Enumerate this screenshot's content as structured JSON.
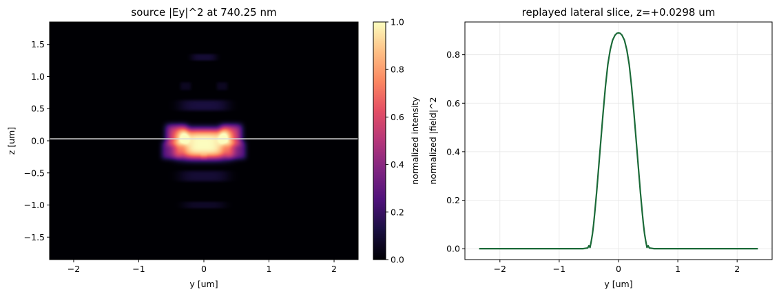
{
  "chart_data": [
    {
      "type": "heatmap",
      "title": "source |Ey|^2 at 740.25 nm",
      "xlabel": "y [um]",
      "ylabel": "z [um]",
      "xlim": [
        -2.37,
        2.37
      ],
      "ylim": [
        -1.85,
        1.85
      ],
      "xticks": [
        -2,
        -1,
        0,
        1,
        2
      ],
      "xtick_labels": [
        "−2",
        "−1",
        "0",
        "1",
        "2"
      ],
      "yticks": [
        -1.5,
        -1.0,
        -0.5,
        0.0,
        0.5,
        1.0,
        1.5
      ],
      "ytick_labels": [
        "−1.5",
        "−1.0",
        "−0.5",
        "0.0",
        "0.5",
        "1.0",
        "1.5"
      ],
      "colormap": "magma",
      "slice_line_z": 0.0298,
      "slice_line_color": "#d9d9d9",
      "intensity_blobs": [
        {
          "y": 0.0,
          "z": -0.05,
          "sy": 0.38,
          "sz": 0.22,
          "amp": 1.0
        },
        {
          "y": -0.42,
          "z": 0.1,
          "sy": 0.16,
          "sz": 0.15,
          "amp": 0.45
        },
        {
          "y": 0.42,
          "z": 0.1,
          "sy": 0.16,
          "sz": 0.15,
          "amp": 0.45
        },
        {
          "y": -0.5,
          "z": -0.15,
          "sy": 0.14,
          "sz": 0.13,
          "amp": 0.3
        },
        {
          "y": 0.5,
          "z": -0.15,
          "sy": 0.14,
          "sz": 0.13,
          "amp": 0.3
        },
        {
          "y": 0.0,
          "z": 0.55,
          "sy": 0.35,
          "sz": 0.08,
          "amp": 0.12
        },
        {
          "y": 0.0,
          "z": -0.55,
          "sy": 0.35,
          "sz": 0.08,
          "amp": 0.1
        },
        {
          "y": 0.0,
          "z": 1.3,
          "sy": 0.18,
          "sz": 0.05,
          "amp": 0.1
        },
        {
          "y": -0.28,
          "z": 0.85,
          "sy": 0.08,
          "sz": 0.06,
          "amp": 0.06
        },
        {
          "y": 0.28,
          "z": 0.85,
          "sy": 0.08,
          "sz": 0.06,
          "amp": 0.06
        },
        {
          "y": 0.0,
          "z": -1.0,
          "sy": 0.3,
          "sz": 0.05,
          "amp": 0.07
        },
        {
          "y": 0.0,
          "z": -0.25,
          "sy": 0.05,
          "sz": 0.05,
          "amp": 0.05
        }
      ]
    },
    {
      "type": "colorbar",
      "label": "normalized intensity",
      "range": [
        0,
        1
      ],
      "ticks": [
        0.0,
        0.2,
        0.4,
        0.6,
        0.8,
        1.0
      ],
      "tick_labels": [
        "0.0",
        "0.2",
        "0.4",
        "0.6",
        "0.8",
        "1.0"
      ],
      "colormap": "magma"
    },
    {
      "type": "line",
      "title": "replayed lateral slice, z=+0.0298 um",
      "xlabel": "y [um]",
      "ylabel": "normalized |field|^2",
      "xlim": [
        -2.59,
        2.59
      ],
      "ylim": [
        -0.045,
        0.935
      ],
      "xticks": [
        -2,
        -1,
        0,
        1,
        2
      ],
      "xtick_labels": [
        "−2",
        "−1",
        "0",
        "1",
        "2"
      ],
      "yticks": [
        0.0,
        0.2,
        0.4,
        0.6,
        0.8
      ],
      "ytick_labels": [
        "0.0",
        "0.2",
        "0.4",
        "0.6",
        "0.8"
      ],
      "grid": true,
      "series": [
        {
          "color": "#1b6a38",
          "x": [
            -2.35,
            -1.5,
            -1.0,
            -0.6,
            -0.52,
            -0.5,
            -0.48,
            -0.46,
            -0.44,
            -0.42,
            -0.4,
            -0.37,
            -0.34,
            -0.3,
            -0.26,
            -0.22,
            -0.18,
            -0.14,
            -0.1,
            -0.06,
            -0.03,
            0.0,
            0.03,
            0.06,
            0.1,
            0.14,
            0.18,
            0.22,
            0.26,
            0.3,
            0.34,
            0.37,
            0.4,
            0.42,
            0.44,
            0.46,
            0.48,
            0.5,
            0.52,
            0.6,
            1.0,
            1.5,
            2.35
          ],
          "y": [
            0.0,
            0.0,
            0.0,
            0.0,
            0.003,
            0.012,
            0.005,
            0.03,
            0.06,
            0.1,
            0.15,
            0.23,
            0.32,
            0.44,
            0.56,
            0.67,
            0.76,
            0.82,
            0.86,
            0.88,
            0.888,
            0.89,
            0.888,
            0.88,
            0.86,
            0.82,
            0.76,
            0.67,
            0.56,
            0.44,
            0.32,
            0.23,
            0.15,
            0.1,
            0.06,
            0.03,
            0.005,
            0.012,
            0.003,
            0.0,
            0.0,
            0.0,
            0.0
          ]
        }
      ]
    }
  ]
}
